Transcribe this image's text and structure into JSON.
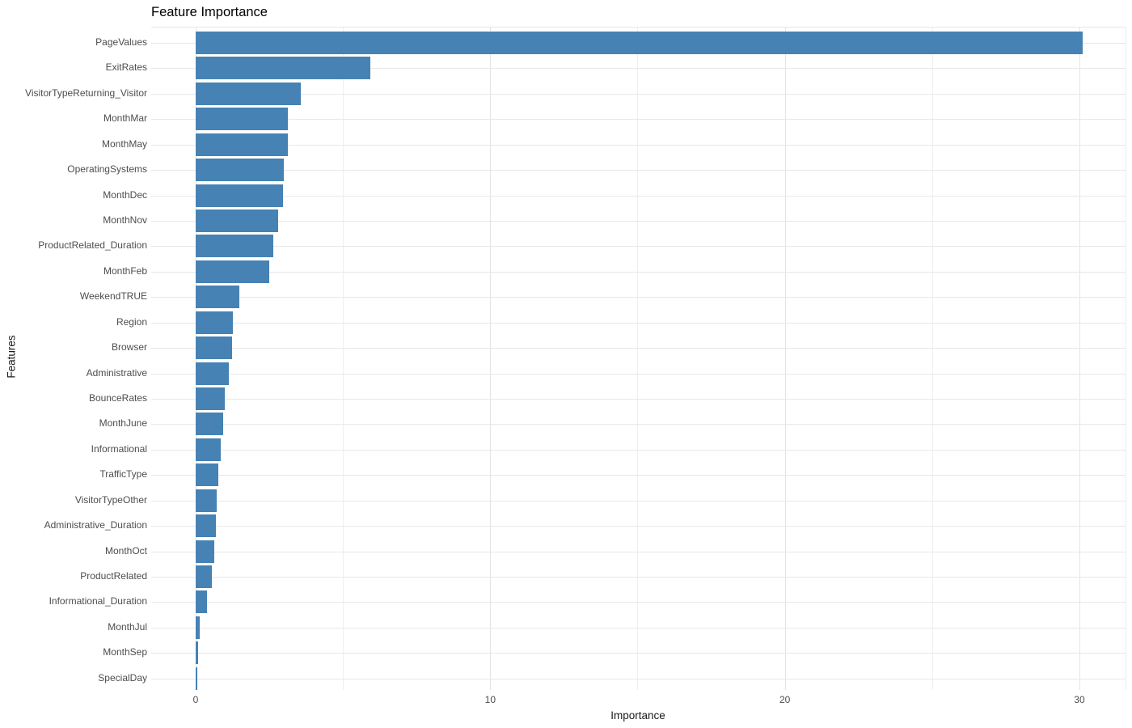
{
  "chart_data": {
    "type": "bar",
    "orientation": "horizontal",
    "title": "Feature Importance",
    "xlabel": "Importance",
    "ylabel": "Features",
    "categories": [
      "PageValues",
      "ExitRates",
      "VisitorTypeReturning_Visitor",
      "MonthMar",
      "MonthMay",
      "OperatingSystems",
      "MonthDec",
      "MonthNov",
      "ProductRelated_Duration",
      "MonthFeb",
      "WeekendTRUE",
      "Region",
      "Browser",
      "Administrative",
      "BounceRates",
      "MonthJune",
      "Informational",
      "TrafficType",
      "VisitorTypeOther",
      "Administrative_Duration",
      "MonthOct",
      "ProductRelated",
      "Informational_Duration",
      "MonthJul",
      "MonthSep",
      "SpecialDay"
    ],
    "values": [
      30.1,
      5.93,
      3.57,
      3.13,
      3.13,
      3.0,
      2.97,
      2.8,
      2.64,
      2.5,
      1.49,
      1.26,
      1.24,
      1.13,
      1.0,
      0.94,
      0.85,
      0.77,
      0.72,
      0.69,
      0.63,
      0.56,
      0.39,
      0.14,
      0.07,
      0.06
    ],
    "xticks": [
      0,
      10,
      20,
      30
    ],
    "xticks_minor": [
      5,
      15,
      25
    ],
    "xlim": [
      0,
      31.6
    ],
    "grid": true,
    "legend": false,
    "sort_order": "descending",
    "bar_color": "#4682B4",
    "background": "#FFFFFF"
  },
  "colors": {
    "bar": "#4682B4",
    "grid_major": "#E4E4E4",
    "grid_minor": "#EFEFEF",
    "category_grid": "#E8E8E8",
    "tick_label": "#4D4D4D",
    "title_text": "#000000"
  }
}
